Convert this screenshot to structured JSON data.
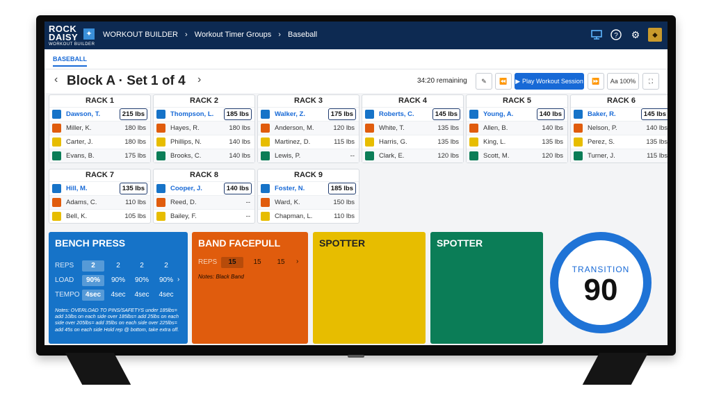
{
  "app": {
    "logo_line1": "ROCK",
    "logo_line2": "DAISY",
    "logo_line3": "WORKOUT BUILDER"
  },
  "breadcrumb": [
    "WORKOUT BUILDER",
    "Workout Timer Groups",
    "Baseball"
  ],
  "header_icons": [
    "monitor-icon",
    "help-icon",
    "gear-icon",
    "avatar"
  ],
  "tabs": [
    {
      "label": "BASEBALL",
      "active": true
    }
  ],
  "session": {
    "title": "Block A · Set 1 of 4",
    "remaining": "34:20 remaining",
    "play_label": "Play Workout Session",
    "font_label": "Aa 100%"
  },
  "colors": {
    "blue": "#1673c8",
    "orange": "#e05c0d",
    "yellow": "#e7bd00",
    "green": "#0b7d57",
    "accent": "#1769d6",
    "header": "#0d2a52"
  },
  "racks": [
    {
      "name": "RACK 1",
      "rows": [
        {
          "athlete": "Dawson, T.",
          "weight": "215 lbs",
          "color": "#1673c8"
        },
        {
          "athlete": "Miller, K.",
          "weight": "180 lbs",
          "color": "#e05c0d"
        },
        {
          "athlete": "Carter, J.",
          "weight": "180 lbs",
          "color": "#e7bd00"
        },
        {
          "athlete": "Evans, B.",
          "weight": "175 lbs",
          "color": "#0b7d57"
        }
      ]
    },
    {
      "name": "RACK 2",
      "rows": [
        {
          "athlete": "Thompson, L.",
          "weight": "185 lbs",
          "color": "#1673c8"
        },
        {
          "athlete": "Hayes, R.",
          "weight": "180 lbs",
          "color": "#e05c0d"
        },
        {
          "athlete": "Phillips, N.",
          "weight": "140 lbs",
          "color": "#e7bd00"
        },
        {
          "athlete": "Brooks, C.",
          "weight": "140 lbs",
          "color": "#0b7d57"
        }
      ]
    },
    {
      "name": "RACK 3",
      "rows": [
        {
          "athlete": "Walker, Z.",
          "weight": "175 lbs",
          "color": "#1673c8"
        },
        {
          "athlete": "Anderson, M.",
          "weight": "120 lbs",
          "color": "#e05c0d"
        },
        {
          "athlete": "Martinez, D.",
          "weight": "115 lbs",
          "color": "#e7bd00"
        },
        {
          "athlete": "Lewis, P.",
          "weight": "--",
          "color": "#0b7d57"
        }
      ]
    },
    {
      "name": "RACK 4",
      "rows": [
        {
          "athlete": "Roberts, C.",
          "weight": "145 lbs",
          "color": "#1673c8"
        },
        {
          "athlete": "White, T.",
          "weight": "135 lbs",
          "color": "#e05c0d"
        },
        {
          "athlete": "Harris, G.",
          "weight": "135 lbs",
          "color": "#e7bd00"
        },
        {
          "athlete": "Clark, E.",
          "weight": "120 lbs",
          "color": "#0b7d57"
        }
      ]
    },
    {
      "name": "RACK 5",
      "rows": [
        {
          "athlete": "Young, A.",
          "weight": "140 lbs",
          "color": "#1673c8"
        },
        {
          "athlete": "Allen, B.",
          "weight": "140 lbs",
          "color": "#e05c0d"
        },
        {
          "athlete": "King, L.",
          "weight": "135 lbs",
          "color": "#e7bd00"
        },
        {
          "athlete": "Scott, M.",
          "weight": "120 lbs",
          "color": "#0b7d57"
        }
      ]
    },
    {
      "name": "RACK 6",
      "rows": [
        {
          "athlete": "Baker, R.",
          "weight": "145 lbs",
          "color": "#1673c8"
        },
        {
          "athlete": "Nelson, P.",
          "weight": "140 lbs",
          "color": "#e05c0d"
        },
        {
          "athlete": "Perez, S.",
          "weight": "135 lbs",
          "color": "#e7bd00"
        },
        {
          "athlete": "Turner, J.",
          "weight": "115 lbs",
          "color": "#0b7d57"
        }
      ]
    },
    {
      "name": "RACK 7",
      "rows": [
        {
          "athlete": "Hill, M.",
          "weight": "135 lbs",
          "color": "#1673c8"
        },
        {
          "athlete": "Adams, C.",
          "weight": "110 lbs",
          "color": "#e05c0d"
        },
        {
          "athlete": "Bell, K.",
          "weight": "105 lbs",
          "color": "#e7bd00"
        }
      ]
    },
    {
      "name": "RACK 8",
      "rows": [
        {
          "athlete": "Cooper, J.",
          "weight": "140 lbs",
          "color": "#1673c8"
        },
        {
          "athlete": "Reed, D.",
          "weight": "--",
          "color": "#e05c0d"
        },
        {
          "athlete": "Bailey, F.",
          "weight": "--",
          "color": "#e7bd00"
        }
      ]
    },
    {
      "name": "RACK 9",
      "rows": [
        {
          "athlete": "Foster, N.",
          "weight": "185 lbs",
          "color": "#1673c8"
        },
        {
          "athlete": "Ward, K.",
          "weight": "150 lbs",
          "color": "#e05c0d"
        },
        {
          "athlete": "Chapman, L.",
          "weight": "110 lbs",
          "color": "#e7bd00"
        }
      ]
    }
  ],
  "exercises": {
    "bench": {
      "title": "BENCH PRESS",
      "reps_label": "REPS",
      "reps": [
        "2",
        "2",
        "2",
        "2"
      ],
      "load_label": "LOAD",
      "load": [
        "90%",
        "90%",
        "90%",
        "90%"
      ],
      "tempo_label": "TEMPO",
      "tempo": [
        "4sec",
        "4sec",
        "4sec",
        "4sec"
      ],
      "notes": "Notes: OVERLOAD TO PINS/SAFETYS under 185lbs= add 10lbs on each side over 185lbs= add 25lbs on each side over 205lbs= add 35lbs on each side over 225lbs= add 45s on each side Hold rep @ bottom, take extra off."
    },
    "band": {
      "title": "BAND FACEPULL",
      "reps_label": "REPS",
      "reps": [
        "15",
        "15",
        "15"
      ],
      "notes": "Notes: Black Band"
    },
    "spotter1": {
      "title": "SPOTTER"
    },
    "spotter2": {
      "title": "SPOTTER"
    }
  },
  "transition": {
    "label": "TRANSITION",
    "value": "90"
  }
}
